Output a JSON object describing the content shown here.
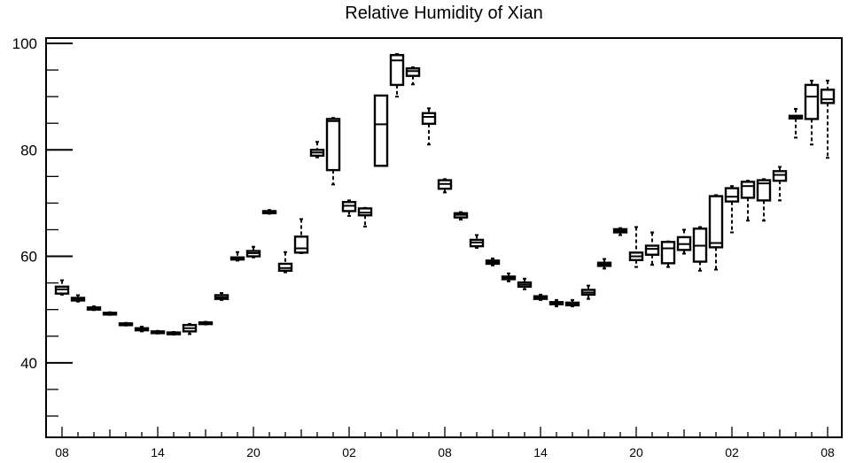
{
  "chart_data": {
    "type": "box",
    "title": "Relative Humidity of Xian",
    "xlabel": "",
    "ylabel": "",
    "ylim": [
      26,
      101
    ],
    "grid": false,
    "y_ticks": [
      40,
      60,
      80,
      100
    ],
    "x_tick_labels": [
      "08",
      "14",
      "20",
      "02",
      "08",
      "14",
      "20",
      "02",
      "08"
    ],
    "boxes": [
      {
        "x": 0,
        "q1": 53.0,
        "q3": 54.3,
        "median": 53.8,
        "whisker_low": 52.8,
        "whisker_high": 55.5
      },
      {
        "x": 1,
        "q1": 51.7,
        "q3": 52.2,
        "median": 52.0,
        "whisker_low": 51.5,
        "whisker_high": 52.7
      },
      {
        "x": 2,
        "q1": 50.0,
        "q3": 50.4,
        "median": 50.2,
        "whisker_low": 49.9,
        "whisker_high": 50.6
      },
      {
        "x": 3,
        "q1": 49.1,
        "q3": 49.4,
        "median": 49.3,
        "whisker_low": 49.0,
        "whisker_high": 49.5
      },
      {
        "x": 4,
        "q1": 47.1,
        "q3": 47.4,
        "median": 47.2,
        "whisker_low": 47.0,
        "whisker_high": 47.5
      },
      {
        "x": 5,
        "q1": 46.1,
        "q3": 46.5,
        "median": 46.3,
        "whisker_low": 45.9,
        "whisker_high": 46.8
      },
      {
        "x": 6,
        "q1": 45.6,
        "q3": 45.9,
        "median": 45.7,
        "whisker_low": 45.5,
        "whisker_high": 46.0
      },
      {
        "x": 7,
        "q1": 45.4,
        "q3": 45.7,
        "median": 45.5,
        "whisker_low": 45.3,
        "whisker_high": 45.8
      },
      {
        "x": 8,
        "q1": 45.9,
        "q3": 47.1,
        "median": 46.5,
        "whisker_low": 45.4,
        "whisker_high": 47.3
      },
      {
        "x": 9,
        "q1": 47.3,
        "q3": 47.6,
        "median": 47.5,
        "whisker_low": 47.2,
        "whisker_high": 47.7
      },
      {
        "x": 10,
        "q1": 52.0,
        "q3": 52.7,
        "median": 52.3,
        "whisker_low": 51.8,
        "whisker_high": 53.1
      },
      {
        "x": 11,
        "q1": 59.4,
        "q3": 59.8,
        "median": 59.6,
        "whisker_low": 59.2,
        "whisker_high": 60.8
      },
      {
        "x": 12,
        "q1": 60.0,
        "q3": 61.0,
        "median": 60.6,
        "whisker_low": 59.8,
        "whisker_high": 61.8
      },
      {
        "x": 13,
        "q1": 68.1,
        "q3": 68.5,
        "median": 68.3,
        "whisker_low": 68.0,
        "whisker_high": 68.7
      },
      {
        "x": 14,
        "q1": 57.3,
        "q3": 58.6,
        "median": 57.8,
        "whisker_low": 57.0,
        "whisker_high": 60.8
      },
      {
        "x": 15,
        "q1": 60.7,
        "q3": 63.7,
        "median": 61.5,
        "whisker_low": 60.6,
        "whisker_high": 67.0
      },
      {
        "x": 16,
        "q1": 78.9,
        "q3": 80.0,
        "median": 79.5,
        "whisker_low": 78.6,
        "whisker_high": 81.5
      },
      {
        "x": 17,
        "q1": 76.2,
        "q3": 85.8,
        "median": 85.4,
        "whisker_low": 73.5,
        "whisker_high": 86.0
      },
      {
        "x": 18,
        "q1": 68.5,
        "q3": 70.2,
        "median": 69.5,
        "whisker_low": 67.6,
        "whisker_high": 70.5
      },
      {
        "x": 19,
        "q1": 67.7,
        "q3": 69.0,
        "median": 68.2,
        "whisker_low": 65.6,
        "whisker_high": 69.1
      },
      {
        "x": 20,
        "q1": 77.0,
        "q3": 90.2,
        "median": 84.8,
        "whisker_low": 77.0,
        "whisker_high": 90.2
      },
      {
        "x": 21,
        "q1": 92.2,
        "q3": 97.8,
        "median": 96.8,
        "whisker_low": 90.0,
        "whisker_high": 98.0
      },
      {
        "x": 22,
        "q1": 93.9,
        "q3": 95.3,
        "median": 94.8,
        "whisker_low": 92.3,
        "whisker_high": 95.5
      },
      {
        "x": 23,
        "q1": 84.9,
        "q3": 86.9,
        "median": 86.2,
        "whisker_low": 81.0,
        "whisker_high": 87.8
      },
      {
        "x": 24,
        "q1": 72.7,
        "q3": 74.3,
        "median": 73.6,
        "whisker_low": 72.0,
        "whisker_high": 74.5
      },
      {
        "x": 25,
        "q1": 67.3,
        "q3": 68.1,
        "median": 67.8,
        "whisker_low": 66.9,
        "whisker_high": 68.3
      },
      {
        "x": 26,
        "q1": 61.9,
        "q3": 63.1,
        "median": 62.6,
        "whisker_low": 61.6,
        "whisker_high": 64.0
      },
      {
        "x": 27,
        "q1": 58.6,
        "q3": 59.2,
        "median": 58.9,
        "whisker_low": 58.3,
        "whisker_high": 59.6
      },
      {
        "x": 28,
        "q1": 55.7,
        "q3": 56.2,
        "median": 55.9,
        "whisker_low": 55.3,
        "whisker_high": 56.8
      },
      {
        "x": 29,
        "q1": 54.3,
        "q3": 55.1,
        "median": 54.7,
        "whisker_low": 53.8,
        "whisker_high": 55.8
      },
      {
        "x": 30,
        "q1": 52.0,
        "q3": 52.5,
        "median": 52.3,
        "whisker_low": 51.8,
        "whisker_high": 52.8
      },
      {
        "x": 31,
        "q1": 51.0,
        "q3": 51.4,
        "median": 51.2,
        "whisker_low": 50.6,
        "whisker_high": 51.8
      },
      {
        "x": 32,
        "q1": 50.8,
        "q3": 51.3,
        "median": 51.0,
        "whisker_low": 50.6,
        "whisker_high": 51.8
      },
      {
        "x": 33,
        "q1": 52.8,
        "q3": 53.7,
        "median": 53.2,
        "whisker_low": 52.0,
        "whisker_high": 54.5
      },
      {
        "x": 34,
        "q1": 58.2,
        "q3": 58.8,
        "median": 58.5,
        "whisker_low": 57.7,
        "whisker_high": 59.5
      },
      {
        "x": 35,
        "q1": 64.5,
        "q3": 65.1,
        "median": 64.8,
        "whisker_low": 64.0,
        "whisker_high": 65.3
      },
      {
        "x": 36,
        "q1": 59.3,
        "q3": 60.7,
        "median": 60.0,
        "whisker_low": 58.0,
        "whisker_high": 65.5
      },
      {
        "x": 37,
        "q1": 60.3,
        "q3": 62.0,
        "median": 61.4,
        "whisker_low": 58.4,
        "whisker_high": 64.5
      },
      {
        "x": 38,
        "q1": 58.7,
        "q3": 62.7,
        "median": 61.5,
        "whisker_low": 58.0,
        "whisker_high": 62.8
      },
      {
        "x": 39,
        "q1": 61.2,
        "q3": 63.6,
        "median": 62.3,
        "whisker_low": 60.5,
        "whisker_high": 65.0
      },
      {
        "x": 40,
        "q1": 59.0,
        "q3": 65.2,
        "median": 62.0,
        "whisker_low": 57.3,
        "whisker_high": 65.5
      },
      {
        "x": 41,
        "q1": 61.7,
        "q3": 71.3,
        "median": 62.5,
        "whisker_low": 57.5,
        "whisker_high": 71.5
      },
      {
        "x": 42,
        "q1": 70.3,
        "q3": 72.8,
        "median": 71.2,
        "whisker_low": 64.5,
        "whisker_high": 73.2
      },
      {
        "x": 43,
        "q1": 71.0,
        "q3": 74.0,
        "median": 73.2,
        "whisker_low": 66.7,
        "whisker_high": 74.2
      },
      {
        "x": 44,
        "q1": 70.5,
        "q3": 74.3,
        "median": 73.7,
        "whisker_low": 66.7,
        "whisker_high": 74.5
      },
      {
        "x": 45,
        "q1": 74.2,
        "q3": 76.0,
        "median": 75.3,
        "whisker_low": 70.5,
        "whisker_high": 76.8
      },
      {
        "x": 46,
        "q1": 85.9,
        "q3": 86.4,
        "median": 86.1,
        "whisker_low": 82.3,
        "whisker_high": 87.7
      },
      {
        "x": 47,
        "q1": 85.8,
        "q3": 92.2,
        "median": 90.0,
        "whisker_low": 81.0,
        "whisker_high": 93.0
      },
      {
        "x": 48,
        "q1": 88.8,
        "q3": 91.3,
        "median": 89.5,
        "whisker_low": 78.5,
        "whisker_high": 93.0
      }
    ]
  }
}
